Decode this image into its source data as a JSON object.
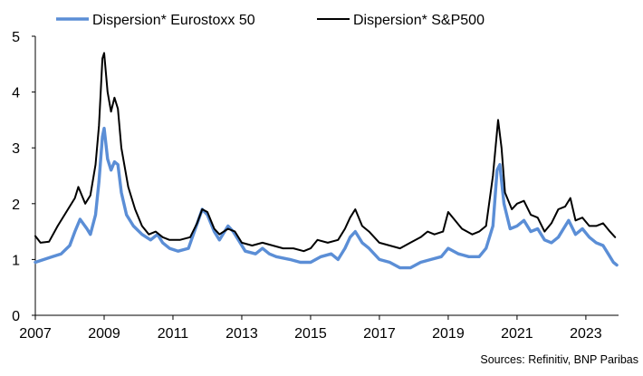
{
  "chart_data": {
    "type": "line",
    "title": "",
    "xlabel": "",
    "ylabel": "",
    "xlim": [
      2007,
      2023.95
    ],
    "ylim": [
      0,
      5
    ],
    "yticks": [
      0,
      1,
      2,
      3,
      4,
      5
    ],
    "xticks": [
      2007,
      2009,
      2011,
      2013,
      2015,
      2017,
      2019,
      2021,
      2023
    ],
    "grid": false,
    "legend_position": "top",
    "source": "Sources: Refinitiv, BNP Paribas",
    "series": [
      {
        "name": "Dispersion* Eurostoxx 50",
        "color": "#5B8ED6",
        "points": [
          [
            2007.0,
            0.95
          ],
          [
            2007.25,
            1.0
          ],
          [
            2007.5,
            1.05
          ],
          [
            2007.75,
            1.1
          ],
          [
            2008.0,
            1.25
          ],
          [
            2008.15,
            1.5
          ],
          [
            2008.3,
            1.72
          ],
          [
            2008.5,
            1.55
          ],
          [
            2008.6,
            1.45
          ],
          [
            2008.75,
            1.8
          ],
          [
            2008.85,
            2.4
          ],
          [
            2008.95,
            3.2
          ],
          [
            2009.0,
            3.35
          ],
          [
            2009.1,
            2.8
          ],
          [
            2009.2,
            2.6
          ],
          [
            2009.3,
            2.75
          ],
          [
            2009.4,
            2.7
          ],
          [
            2009.5,
            2.2
          ],
          [
            2009.65,
            1.8
          ],
          [
            2009.85,
            1.6
          ],
          [
            2010.1,
            1.45
          ],
          [
            2010.35,
            1.35
          ],
          [
            2010.55,
            1.45
          ],
          [
            2010.7,
            1.3
          ],
          [
            2010.9,
            1.2
          ],
          [
            2011.15,
            1.15
          ],
          [
            2011.45,
            1.2
          ],
          [
            2011.65,
            1.55
          ],
          [
            2011.85,
            1.9
          ],
          [
            2012.0,
            1.8
          ],
          [
            2012.2,
            1.5
          ],
          [
            2012.35,
            1.35
          ],
          [
            2012.6,
            1.6
          ],
          [
            2012.75,
            1.5
          ],
          [
            2012.95,
            1.3
          ],
          [
            2013.1,
            1.15
          ],
          [
            2013.4,
            1.1
          ],
          [
            2013.6,
            1.2
          ],
          [
            2013.8,
            1.1
          ],
          [
            2014.0,
            1.05
          ],
          [
            2014.4,
            1.0
          ],
          [
            2014.7,
            0.95
          ],
          [
            2015.0,
            0.95
          ],
          [
            2015.3,
            1.05
          ],
          [
            2015.6,
            1.1
          ],
          [
            2015.8,
            1.0
          ],
          [
            2016.0,
            1.2
          ],
          [
            2016.15,
            1.4
          ],
          [
            2016.3,
            1.5
          ],
          [
            2016.5,
            1.3
          ],
          [
            2016.7,
            1.2
          ],
          [
            2017.0,
            1.0
          ],
          [
            2017.3,
            0.95
          ],
          [
            2017.6,
            0.85
          ],
          [
            2017.9,
            0.85
          ],
          [
            2018.2,
            0.95
          ],
          [
            2018.5,
            1.0
          ],
          [
            2018.8,
            1.05
          ],
          [
            2019.0,
            1.2
          ],
          [
            2019.3,
            1.1
          ],
          [
            2019.6,
            1.05
          ],
          [
            2019.9,
            1.05
          ],
          [
            2020.1,
            1.2
          ],
          [
            2020.3,
            1.6
          ],
          [
            2020.42,
            2.6
          ],
          [
            2020.5,
            2.7
          ],
          [
            2020.62,
            2.0
          ],
          [
            2020.8,
            1.55
          ],
          [
            2021.0,
            1.6
          ],
          [
            2021.2,
            1.7
          ],
          [
            2021.4,
            1.5
          ],
          [
            2021.6,
            1.55
          ],
          [
            2021.8,
            1.35
          ],
          [
            2022.0,
            1.3
          ],
          [
            2022.2,
            1.4
          ],
          [
            2022.35,
            1.55
          ],
          [
            2022.5,
            1.7
          ],
          [
            2022.7,
            1.45
          ],
          [
            2022.9,
            1.55
          ],
          [
            2023.1,
            1.4
          ],
          [
            2023.3,
            1.3
          ],
          [
            2023.5,
            1.25
          ],
          [
            2023.65,
            1.1
          ],
          [
            2023.8,
            0.95
          ],
          [
            2023.9,
            0.9
          ]
        ]
      },
      {
        "name": "Dispersion* S&P500",
        "color": "#000000",
        "points": [
          [
            2007.0,
            1.42
          ],
          [
            2007.15,
            1.3
          ],
          [
            2007.4,
            1.32
          ],
          [
            2007.65,
            1.6
          ],
          [
            2007.9,
            1.85
          ],
          [
            2008.15,
            2.1
          ],
          [
            2008.25,
            2.3
          ],
          [
            2008.45,
            2.0
          ],
          [
            2008.6,
            2.15
          ],
          [
            2008.75,
            2.7
          ],
          [
            2008.85,
            3.4
          ],
          [
            2008.95,
            4.6
          ],
          [
            2009.0,
            4.7
          ],
          [
            2009.1,
            4.0
          ],
          [
            2009.2,
            3.65
          ],
          [
            2009.3,
            3.9
          ],
          [
            2009.4,
            3.7
          ],
          [
            2009.5,
            3.0
          ],
          [
            2009.7,
            2.3
          ],
          [
            2009.9,
            1.9
          ],
          [
            2010.1,
            1.6
          ],
          [
            2010.3,
            1.45
          ],
          [
            2010.5,
            1.5
          ],
          [
            2010.7,
            1.4
          ],
          [
            2010.9,
            1.35
          ],
          [
            2011.2,
            1.35
          ],
          [
            2011.5,
            1.4
          ],
          [
            2011.7,
            1.65
          ],
          [
            2011.85,
            1.9
          ],
          [
            2012.0,
            1.85
          ],
          [
            2012.2,
            1.55
          ],
          [
            2012.35,
            1.45
          ],
          [
            2012.6,
            1.55
          ],
          [
            2012.8,
            1.5
          ],
          [
            2013.0,
            1.3
          ],
          [
            2013.3,
            1.25
          ],
          [
            2013.6,
            1.3
          ],
          [
            2013.9,
            1.25
          ],
          [
            2014.2,
            1.2
          ],
          [
            2014.5,
            1.2
          ],
          [
            2014.8,
            1.15
          ],
          [
            2015.0,
            1.2
          ],
          [
            2015.2,
            1.35
          ],
          [
            2015.5,
            1.3
          ],
          [
            2015.8,
            1.35
          ],
          [
            2016.0,
            1.55
          ],
          [
            2016.15,
            1.75
          ],
          [
            2016.3,
            1.9
          ],
          [
            2016.5,
            1.6
          ],
          [
            2016.7,
            1.5
          ],
          [
            2017.0,
            1.3
          ],
          [
            2017.3,
            1.25
          ],
          [
            2017.6,
            1.2
          ],
          [
            2017.9,
            1.3
          ],
          [
            2018.2,
            1.4
          ],
          [
            2018.4,
            1.5
          ],
          [
            2018.6,
            1.45
          ],
          [
            2018.85,
            1.5
          ],
          [
            2019.0,
            1.85
          ],
          [
            2019.2,
            1.7
          ],
          [
            2019.4,
            1.55
          ],
          [
            2019.7,
            1.45
          ],
          [
            2019.9,
            1.5
          ],
          [
            2020.1,
            1.6
          ],
          [
            2020.3,
            2.5
          ],
          [
            2020.45,
            3.5
          ],
          [
            2020.55,
            3.0
          ],
          [
            2020.65,
            2.2
          ],
          [
            2020.85,
            1.9
          ],
          [
            2021.0,
            2.0
          ],
          [
            2021.2,
            2.05
          ],
          [
            2021.4,
            1.8
          ],
          [
            2021.6,
            1.75
          ],
          [
            2021.8,
            1.5
          ],
          [
            2022.0,
            1.65
          ],
          [
            2022.2,
            1.9
          ],
          [
            2022.4,
            1.95
          ],
          [
            2022.55,
            2.1
          ],
          [
            2022.7,
            1.7
          ],
          [
            2022.9,
            1.75
          ],
          [
            2023.1,
            1.6
          ],
          [
            2023.3,
            1.6
          ],
          [
            2023.5,
            1.65
          ],
          [
            2023.7,
            1.5
          ],
          [
            2023.85,
            1.4
          ]
        ]
      }
    ]
  }
}
